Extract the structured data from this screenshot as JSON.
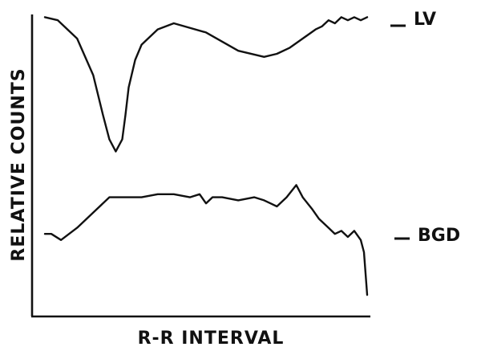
{
  "chart_data": {
    "type": "line",
    "xlabel": "R-R INTERVAL",
    "ylabel": "RELATIVE COUNTS",
    "x_range": [
      0,
      100
    ],
    "y_range": [
      0,
      100
    ],
    "grid": false,
    "series": [
      {
        "name": "LV",
        "x": [
          0,
          4,
          10,
          15,
          18,
          20,
          22,
          24,
          25,
          26,
          28,
          30,
          35,
          40,
          50,
          60,
          68,
          72,
          76,
          80,
          84,
          86,
          88,
          90,
          92,
          94,
          96,
          98,
          100
        ],
        "y": [
          97,
          96,
          90,
          78,
          65,
          57,
          53,
          57,
          65,
          74,
          83,
          88,
          93,
          95,
          92,
          86,
          84,
          85,
          87,
          90,
          93,
          94,
          96,
          95,
          97,
          96,
          97,
          96,
          97
        ]
      },
      {
        "name": "BGD",
        "x": [
          0,
          2,
          5,
          10,
          15,
          20,
          25,
          30,
          35,
          40,
          45,
          48,
          50,
          52,
          55,
          60,
          65,
          68,
          70,
          72,
          75,
          78,
          80,
          83,
          85,
          88,
          90,
          92,
          94,
          96,
          98,
          99,
          100
        ],
        "y": [
          26,
          26,
          24,
          28,
          33,
          38,
          38,
          38,
          39,
          39,
          38,
          39,
          36,
          38,
          38,
          37,
          38,
          37,
          36,
          35,
          38,
          42,
          38,
          34,
          31,
          28,
          26,
          27,
          25,
          27,
          24,
          20,
          6
        ]
      }
    ]
  }
}
